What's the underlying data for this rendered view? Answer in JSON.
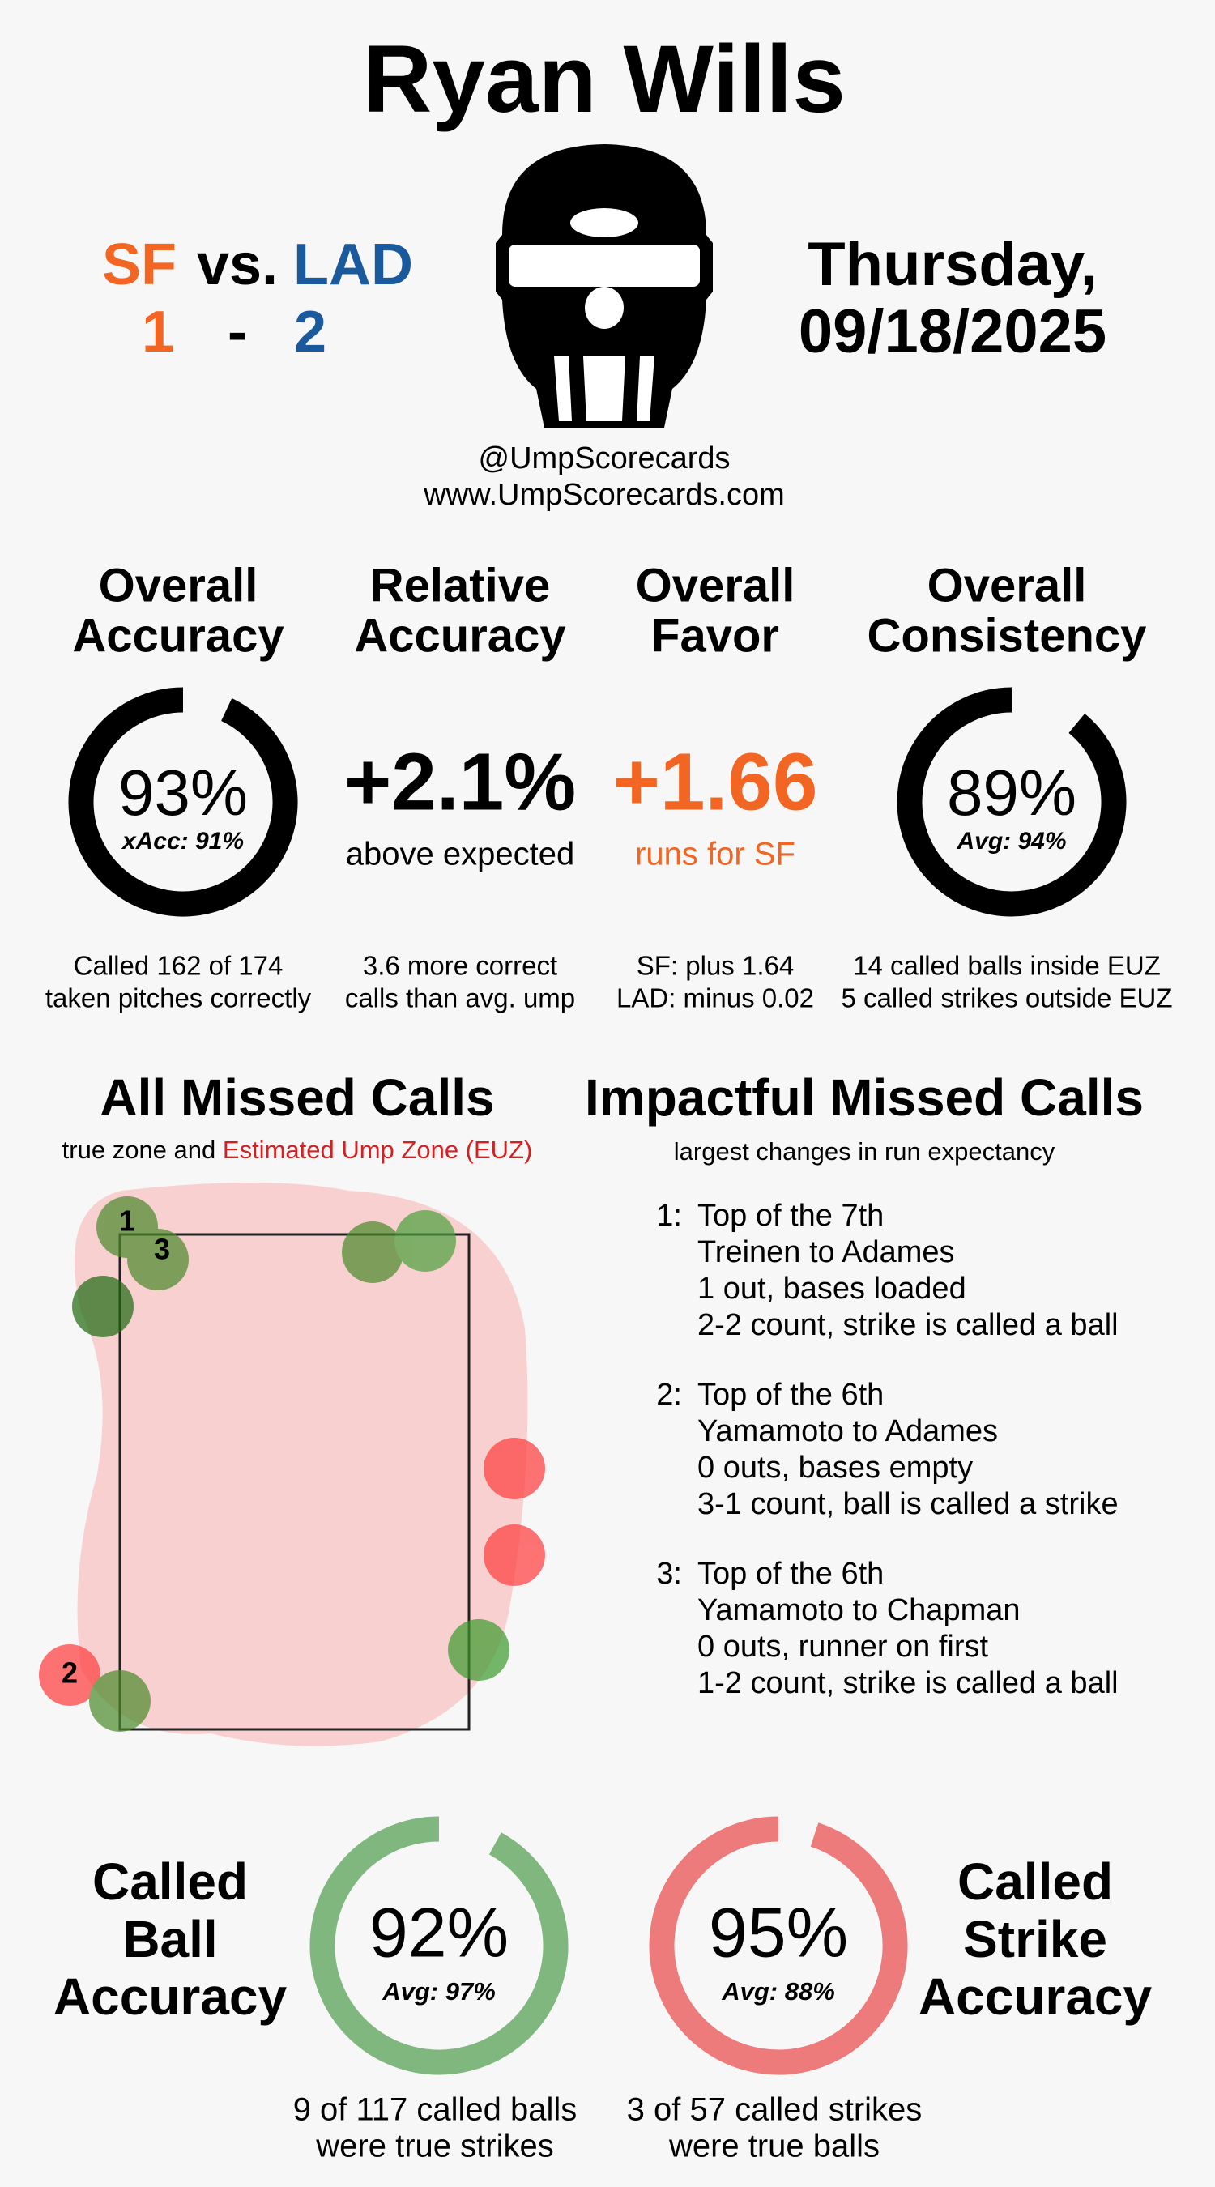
{
  "header": {
    "umpire": "Ryan Wills",
    "away_team": "SF",
    "vs": "vs.",
    "home_team": "LAD",
    "away_score": "1",
    "dash": "-",
    "home_score": "2",
    "day": "Thursday,",
    "date": "09/18/2025",
    "handle": "@UmpScorecards",
    "website": "www.UmpScorecards.com"
  },
  "metrics": [
    {
      "title_lines": [
        "Overall",
        "Accuracy"
      ],
      "value": 93,
      "label": "93%",
      "sub": "xAcc: 91%",
      "notes": [
        "Called 162 of 174",
        "taken pitches correctly"
      ]
    },
    {
      "title_lines": [
        "Relative",
        "Accuracy"
      ],
      "label": "+2.1%",
      "sub": "above expected",
      "notes": [
        "3.6 more correct",
        "calls than avg. ump"
      ]
    },
    {
      "title_lines": [
        "Overall",
        "Favor"
      ],
      "label": "+1.66",
      "sub": "runs for SF",
      "notes": [
        "SF: plus 1.64",
        "LAD: minus 0.02"
      ]
    },
    {
      "title_lines": [
        "Overall",
        "Consistency"
      ],
      "value": 89,
      "label": "89%",
      "sub": "Avg: 94%",
      "notes": [
        "14 called balls inside EUZ",
        "5 called strikes outside EUZ"
      ]
    }
  ],
  "missed_calls": {
    "title": "All Missed Calls",
    "subtitle": "true zone and",
    "subtitle_highlight": "Estimated Ump Zone (EUZ)",
    "labels": [
      "1",
      "2",
      "3"
    ]
  },
  "impactful": {
    "title": "Impactful Missed Calls",
    "subtitle": "largest changes in run expectancy",
    "items": [
      {
        "number": "1:",
        "lines": [
          "Top of the 7th",
          "Treinen to Adames",
          "1 out, bases loaded",
          "2-2 count, strike is called a ball"
        ]
      },
      {
        "number": "2:",
        "lines": [
          "Top of the 6th",
          "Yamamoto to Adames",
          "0 outs, bases empty",
          "3-1 count, ball is called a strike"
        ]
      },
      {
        "number": "3:",
        "lines": [
          "Top of the 6th",
          "Yamamoto to Chapman",
          "0 outs, runner on first",
          "1-2 count, strike is called a ball"
        ]
      }
    ]
  },
  "called_ball": {
    "title_lines": [
      "Called",
      "Ball",
      "Accuracy"
    ],
    "value": 92,
    "label": "92%",
    "sub": "Avg: 97%",
    "notes": [
      "9 of 117 called balls",
      "were true strikes"
    ]
  },
  "called_strike": {
    "title_lines": [
      "Called",
      "Strike",
      "Accuracy"
    ],
    "value": 95,
    "label": "95%",
    "sub": "Avg: 88%",
    "notes": [
      "3 of 57 called strikes",
      "were true balls"
    ]
  }
}
